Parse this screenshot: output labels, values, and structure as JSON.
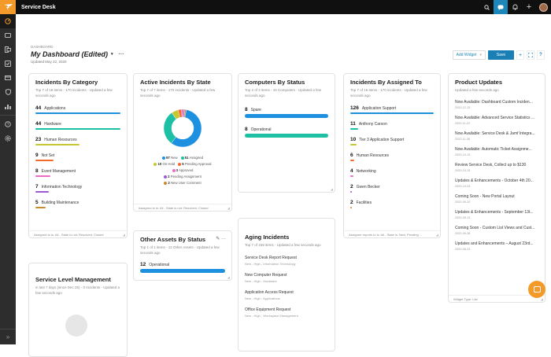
{
  "topbar": {
    "app_title": "Service Desk",
    "icons": [
      "search-icon",
      "chat-icon",
      "bell-icon",
      "plus-icon",
      "user-avatar"
    ]
  },
  "sidebar": {
    "items": [
      "dashboard-icon",
      "tickets-icon",
      "assets-icon",
      "tasks-icon",
      "catalog-icon",
      "security-icon",
      "reports-icon",
      "help-icon",
      "settings-icon"
    ],
    "collapse": "»"
  },
  "header": {
    "breadcrumb": "DASHBOARD",
    "title": "My Dashboard (Edited)",
    "caret": "▾",
    "more": "···",
    "updated": "Updated May 22, 2020"
  },
  "toolbar": {
    "add_widget": "Add Widget",
    "add_widget_caret": "▾",
    "save": "Save",
    "plus": "+",
    "fullscreen": "⛶",
    "help": "?"
  },
  "widgets": {
    "incidents_by_category": {
      "title": "Incidents By Category",
      "subtitle": "Top 7 of 18 items - 170 incidents - Updated a few seconds ago",
      "footer": "Assigned to is: All - State is not: Resolved, Closed",
      "items": [
        {
          "value": "44",
          "label": "Applications",
          "color": "#1e90e0",
          "pct": 100
        },
        {
          "value": "44",
          "label": "Hardware",
          "color": "#1dbfa5",
          "pct": 100
        },
        {
          "value": "23",
          "label": "Human Resources",
          "color": "#c7c732",
          "pct": 52
        },
        {
          "value": "9",
          "label": "Not Set",
          "color": "#f26b2a",
          "pct": 21
        },
        {
          "value": "8",
          "label": "Event Management",
          "color": "#f06ac4",
          "pct": 18
        },
        {
          "value": "7",
          "label": "Information Technology",
          "color": "#9b59d6",
          "pct": 16
        },
        {
          "value": "5",
          "label": "Building Maintenance",
          "color": "#cc8a30",
          "pct": 12
        }
      ]
    },
    "active_incidents_by_state": {
      "title": "Active Incidents By State",
      "subtitle": "Top 7 of 7 items - 170 incidents - Updated a few seconds ago",
      "footer": "Assigned to is: All - State is not: Resolved, Closed",
      "items": [
        {
          "value": "97",
          "label": "New",
          "color": "#1e90e0"
        },
        {
          "value": "51",
          "label": "Assigned",
          "color": "#1dbfa5"
        },
        {
          "value": "10",
          "label": "On Hold",
          "color": "#c7c732"
        },
        {
          "value": "5",
          "label": "Pending Approval",
          "color": "#f26b2a"
        },
        {
          "value": "3",
          "label": "Approved",
          "color": "#f06ac4"
        },
        {
          "value": "2",
          "label": "Pending Assignment",
          "color": "#9b59d6"
        },
        {
          "value": "2",
          "label": "New User Comment",
          "color": "#cc8a30"
        }
      ]
    },
    "computers_by_status": {
      "title": "Computers By Status",
      "subtitle": "Top 2 of 2 items - 16 Computers - Updated a few seconds ago",
      "items": [
        {
          "value": "8",
          "label": "Spare",
          "color": "#1e90e0",
          "pct": 100
        },
        {
          "value": "8",
          "label": "Operational",
          "color": "#1dbfa5",
          "pct": 100
        }
      ]
    },
    "incidents_by_assigned_to": {
      "title": "Incidents By Assigned To",
      "subtitle": "Top 7 of 16 items - 170 incidents - Updated a few seconds ago",
      "footer": "Assignee reports to is: All - State is: New, Pending ...",
      "items": [
        {
          "value": "126",
          "label": "Application Support",
          "color": "#1e90e0",
          "pct": 100
        },
        {
          "value": "11",
          "label": "Anthony Carson",
          "color": "#1dbfa5",
          "pct": 9
        },
        {
          "value": "10",
          "label": "Tier 3 Application Support",
          "color": "#c7c732",
          "pct": 8
        },
        {
          "value": "6",
          "label": "Human Resources",
          "color": "#f26b2a",
          "pct": 5
        },
        {
          "value": "4",
          "label": "Networking",
          "color": "#f06ac4",
          "pct": 3.5
        },
        {
          "value": "2",
          "label": "Gwen Becker",
          "color": "#9b59d6",
          "pct": 2
        },
        {
          "value": "2",
          "label": "Facilities",
          "color": "#cc8a30",
          "pct": 2
        }
      ]
    },
    "product_updates": {
      "title": "Product Updates",
      "subtitle": "Updated a few seconds ago",
      "footer": "Widget Type: List",
      "items": [
        {
          "title": "Now Available: Dashboard Custom Inciden...",
          "date": "2020-12-13"
        },
        {
          "title": "Now Available: Advanced Service Statistics ...",
          "date": "2020-11-22"
        },
        {
          "title": "Now Available: Service Desk & Jamf Integra...",
          "date": "2020-11-08"
        },
        {
          "title": "Now Available: Automatic Ticket Assignme...",
          "date": "2020-10-19"
        },
        {
          "title": "Review Service Desk, Collect up to $130",
          "date": "2020-10-15"
        },
        {
          "title": "Updates & Enhancements - October 4th 20...",
          "date": "2020-10-04"
        },
        {
          "title": "Coming Soon - New Portal Layout",
          "date": "2020-09-20"
        },
        {
          "title": "Updates & Enhancements - September 13t...",
          "date": "2020-09-13"
        },
        {
          "title": "Coming Soon - Custom List Views and Cust...",
          "date": "2020-09-08"
        },
        {
          "title": "Updates and Enhancements – August 23rd...",
          "date": "2020-08-23"
        }
      ]
    },
    "other_assets_by_status": {
      "title": "Other Assets By Status",
      "subtitle": "Top 1 of 1 items - 12 Other Assets - Updated a few seconds ago",
      "items": [
        {
          "value": "12",
          "label": "Operational",
          "color": "#1e90e0",
          "pct": 100
        }
      ]
    },
    "aging_incidents": {
      "title": "Aging Incidents",
      "subtitle": "Top 7 of 159 items - Updated a few seconds ago",
      "items": [
        {
          "title": "Service Desk Report Request",
          "meta": "New - High - Information Technology"
        },
        {
          "title": "New Computer Request",
          "meta": "New - High - Hardware"
        },
        {
          "title": "Application Access Request",
          "meta": "New - High - Applications"
        },
        {
          "title": "Office Equipment Request",
          "meta": "New - High - Workspace Management"
        }
      ]
    },
    "service_level_management": {
      "title": "Service Level Management",
      "subtitle": "in last 7 days (since Dec 25) - 0 Incidents - Updated a few seconds ago"
    }
  }
}
